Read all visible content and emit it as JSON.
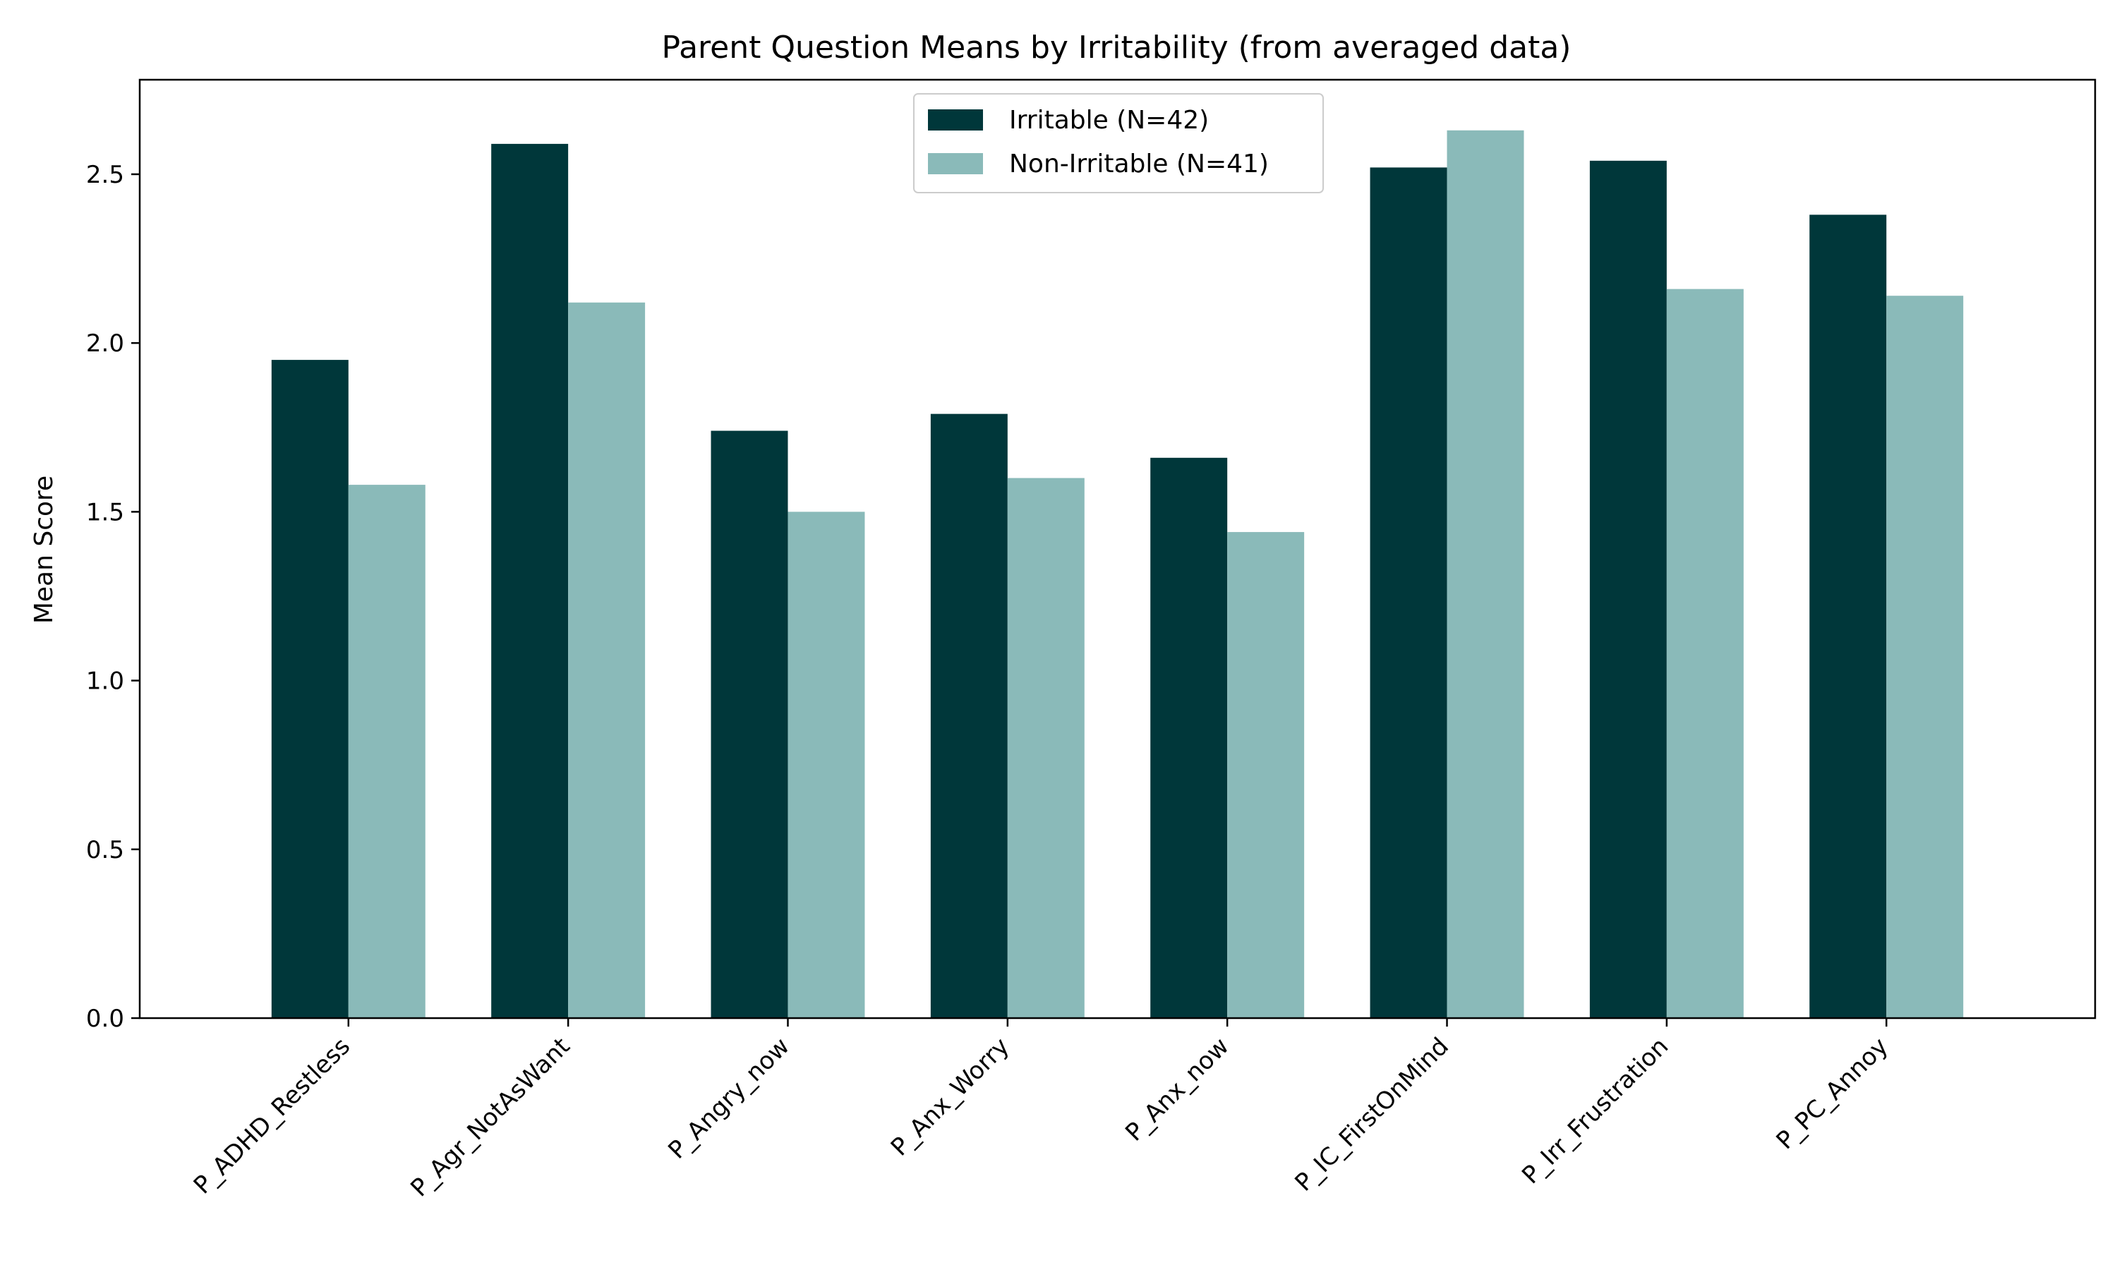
{
  "chart_data": {
    "type": "bar",
    "title": "Parent Question Means by Irritability (from averaged data)",
    "xlabel": "",
    "ylabel": "Mean Score",
    "categories": [
      "P_ADHD_Restless",
      "P_Agr_NotAsWant",
      "P_Angry_now",
      "P_Anx_Worry",
      "P_Anx_now",
      "P_IC_FirstOnMind",
      "P_Irr_Frustration",
      "P_PC_Annoy"
    ],
    "series": [
      {
        "name": "Irritable (N=42)",
        "color": "#00373a",
        "values": [
          1.95,
          2.59,
          1.74,
          1.79,
          1.66,
          2.52,
          2.54,
          2.38
        ]
      },
      {
        "name": "Non-Irritable (N=41)",
        "color": "#8abab9",
        "values": [
          1.58,
          2.12,
          1.5,
          1.6,
          1.44,
          2.63,
          2.16,
          2.14
        ]
      }
    ],
    "ylim": [
      0,
      2.78
    ],
    "yticks": [
      "0.0",
      "0.5",
      "1.0",
      "1.5",
      "2.0",
      "2.5"
    ],
    "legend": "top-center",
    "grid": false
  }
}
